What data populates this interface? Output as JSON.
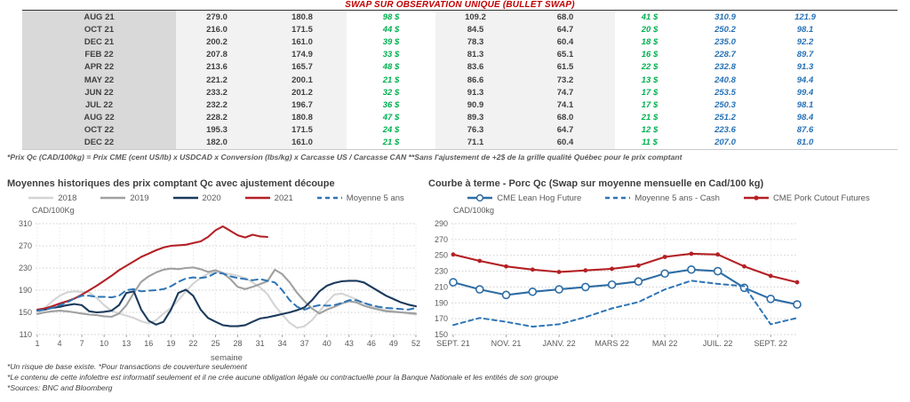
{
  "title": "SWAP SUR OBSERVATION UNIQUE (BULLET SWAP)",
  "colors": {
    "title_red": "#c00000",
    "table_green": "#00b050",
    "table_blue": "#2670b5",
    "grid_gray": "#cccccc"
  },
  "table": {
    "rows": [
      [
        "AUG 21",
        "279.0",
        "180.8",
        "98 $",
        "109.2",
        "68.0",
        "41 $",
        "310.9",
        "121.9"
      ],
      [
        "OCT 21",
        "216.0",
        "171.5",
        "44 $",
        "84.5",
        "64.7",
        "20 $",
        "250.2",
        "98.1"
      ],
      [
        "DEC 21",
        "200.2",
        "161.0",
        "39 $",
        "78.3",
        "60.4",
        "18 $",
        "235.0",
        "92.2"
      ],
      [
        "FEB 22",
        "207.8",
        "174.9",
        "33 $",
        "81.3",
        "65.1",
        "16 $",
        "228.7",
        "89.7"
      ],
      [
        "APR 22",
        "213.6",
        "165.7",
        "48 $",
        "83.6",
        "61.5",
        "22 $",
        "232.8",
        "91.3"
      ],
      [
        "MAY 22",
        "221.2",
        "200.1",
        "21 $",
        "86.6",
        "73.2",
        "13 $",
        "240.8",
        "94.4"
      ],
      [
        "JUN 22",
        "233.2",
        "201.2",
        "32 $",
        "91.3",
        "74.7",
        "17 $",
        "253.5",
        "99.4"
      ],
      [
        "JUL 22",
        "232.2",
        "196.7",
        "36 $",
        "90.9",
        "74.1",
        "17 $",
        "250.3",
        "98.1"
      ],
      [
        "AUG 22",
        "228.2",
        "180.8",
        "47 $",
        "89.3",
        "68.0",
        "21 $",
        "251.2",
        "98.4"
      ],
      [
        "OCT 22",
        "195.3",
        "171.5",
        "24 $",
        "76.3",
        "64.7",
        "12 $",
        "223.6",
        "87.6"
      ],
      [
        "DEC 22",
        "182.0",
        "161.0",
        "21 $",
        "71.1",
        "60.4",
        "11 $",
        "207.0",
        "81.0"
      ]
    ],
    "footnote": "*Prix Qc (CAD/100kg) = Prix CME (cent US/lb) x USDCAD x Conversion (lbs/kg) x Carcasse US / Carcasse CAN **Sans l'ajustement de +2$ de la grille qualité Québec pour le prix comptant"
  },
  "chart_data": [
    {
      "type": "line",
      "title": "Moyennes historiques des prix comptant Qc avec ajustement découpe",
      "ylabel": "CAD/100Kg",
      "xlabel": "semaine",
      "ylim": [
        110,
        310
      ],
      "yticks": [
        110,
        150,
        190,
        230,
        270,
        310
      ],
      "x_count": 52,
      "xticks": [
        {
          "i": 0,
          "label": "1"
        },
        {
          "i": 3,
          "label": "4"
        },
        {
          "i": 6,
          "label": "7"
        },
        {
          "i": 9,
          "label": "10"
        },
        {
          "i": 12,
          "label": "13"
        },
        {
          "i": 15,
          "label": "16"
        },
        {
          "i": 18,
          "label": "19"
        },
        {
          "i": 21,
          "label": "22"
        },
        {
          "i": 24,
          "label": "25"
        },
        {
          "i": 27,
          "label": "28"
        },
        {
          "i": 30,
          "label": "31"
        },
        {
          "i": 33,
          "label": "34"
        },
        {
          "i": 36,
          "label": "37"
        },
        {
          "i": 39,
          "label": "40"
        },
        {
          "i": 42,
          "label": "43"
        },
        {
          "i": 45,
          "label": "46"
        },
        {
          "i": 48,
          "label": "49"
        },
        {
          "i": 51,
          "label": "52"
        }
      ],
      "grid": true,
      "legend_position": "top",
      "series": [
        {
          "name": "2018",
          "color": "#d4d4d4",
          "values": [
            148,
            158,
            170,
            180,
            186,
            188,
            187,
            186,
            176,
            163,
            153,
            148,
            144,
            140,
            134,
            130,
            136,
            148,
            158,
            172,
            188,
            202,
            212,
            220,
            223,
            221,
            219,
            216,
            212,
            204,
            195,
            183,
            162,
            146,
            131,
            122,
            125,
            136,
            152,
            168,
            182,
            184,
            179,
            173,
            167,
            161,
            157,
            154,
            152,
            150,
            148,
            146
          ]
        },
        {
          "name": "2019",
          "color": "#a0a0a0",
          "values": [
            147,
            150,
            152,
            153,
            152,
            150,
            148,
            146,
            145,
            143,
            142,
            148,
            163,
            185,
            205,
            215,
            222,
            227,
            229,
            228,
            230,
            231,
            228,
            223,
            226,
            221,
            210,
            196,
            192,
            196,
            201,
            206,
            227,
            219,
            204,
            185,
            170,
            157,
            148,
            155,
            160,
            166,
            170,
            168,
            162,
            158,
            155,
            152,
            151,
            150,
            149,
            148
          ]
        },
        {
          "name": "2020",
          "color": "#1b3a5c",
          "values": [
            153,
            155,
            158,
            160,
            163,
            165,
            163,
            152,
            150,
            151,
            153,
            163,
            185,
            188,
            155,
            135,
            128,
            133,
            155,
            185,
            191,
            180,
            155,
            140,
            133,
            127,
            125,
            125,
            127,
            133,
            139,
            141,
            144,
            147,
            150,
            154,
            159,
            172,
            188,
            198,
            203,
            206,
            207,
            207,
            204,
            196,
            188,
            180,
            174,
            168,
            164,
            161
          ]
        },
        {
          "name": "2021",
          "color": "#b42025",
          "values": [
            155,
            157,
            161,
            166,
            170,
            175,
            182,
            190,
            198,
            207,
            216,
            226,
            234,
            242,
            250,
            256,
            262,
            267,
            270,
            271,
            272,
            275,
            278,
            286,
            298,
            305,
            297,
            289,
            285,
            290,
            287,
            286
          ]
        },
        {
          "name": "Moyenne 5 ans",
          "color": "#2e75b6",
          "dash": true,
          "values": [
            153,
            155,
            158,
            163,
            168,
            175,
            180,
            180,
            178,
            178,
            177,
            180,
            190,
            192,
            188,
            189,
            190,
            192,
            197,
            205,
            211,
            213,
            212,
            214,
            221,
            220,
            215,
            212,
            210,
            208,
            210,
            207,
            204,
            190,
            172,
            160,
            155,
            160,
            163,
            162,
            163,
            167,
            172,
            172,
            167,
            163,
            160,
            158,
            157,
            156,
            155,
            158
          ]
        }
      ]
    },
    {
      "type": "line",
      "title": "Courbe à terme - Porc Qc (Swap sur moyenne mensuelle en Cad/100 kg)",
      "ylabel": "CAD/100kg",
      "xlabel": "",
      "ylim": [
        150,
        290
      ],
      "yticks": [
        150,
        170,
        190,
        210,
        230,
        250,
        270,
        290
      ],
      "x_count": 14,
      "xticks": [
        {
          "i": 0,
          "label": "SEPT. 21"
        },
        {
          "i": 2,
          "label": "NOV. 21"
        },
        {
          "i": 4,
          "label": "JANV. 22"
        },
        {
          "i": 6,
          "label": "MARS 22"
        },
        {
          "i": 8,
          "label": "MAI 22"
        },
        {
          "i": 10,
          "label": "JUIL. 22"
        },
        {
          "i": 12,
          "label": "SEPT. 22"
        }
      ],
      "grid": true,
      "legend_position": "top",
      "series": [
        {
          "name": "CME Lean Hog Future",
          "color": "#2e6da4",
          "marker": "open-circle",
          "values": [
            216,
            207,
            200,
            204,
            207,
            210,
            213,
            217,
            227,
            232,
            230,
            209,
            195,
            188
          ]
        },
        {
          "name": "Moyenne 5 ans - Cash",
          "color": "#2e75b6",
          "dash": true,
          "values": [
            162,
            171,
            166,
            160,
            163,
            172,
            183,
            191,
            207,
            218,
            214,
            211,
            163,
            171
          ]
        },
        {
          "name": "CME Pork Cutout Futures",
          "color": "#b42025",
          "marker": "filled-circle",
          "values": [
            251,
            243,
            236,
            232,
            229,
            231,
            233,
            237,
            248,
            252,
            251,
            236,
            224,
            216
          ]
        }
      ]
    }
  ],
  "footnotes": [
    "*Un risque de base existe. *Pour transactions de couverture seulement",
    "*Le contenu de cette infolettre est informatif seulement et il ne crée aucune obligation légale ou contractuelle pour la Banque Nationale et les entités de son groupe",
    "*Sources: BNC and Bloomberg"
  ]
}
